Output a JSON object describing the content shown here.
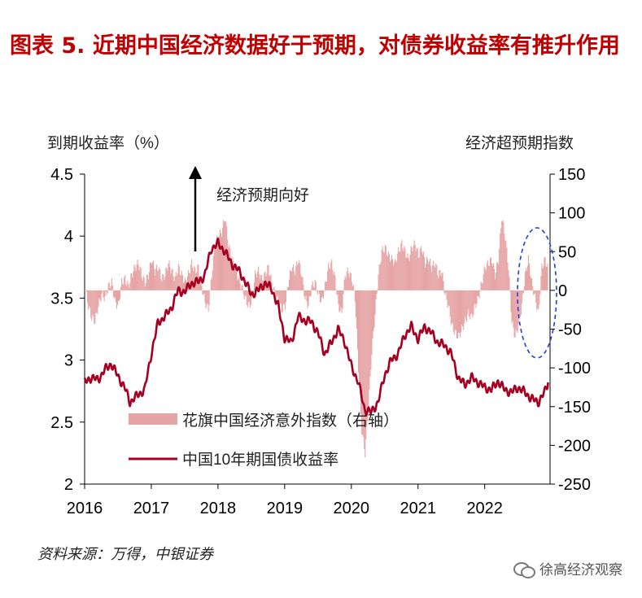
{
  "title": "图表 5.  近期中国经济数据好于预期，对债券收益率有推升作用",
  "source": "资料来源：万得，中银证券",
  "watermark": "徐高经济观察",
  "chart_data": {
    "type": "line+bar",
    "left_axis_label": "到期收益率（%）",
    "right_axis_label": "经济超预期指数",
    "left_ticks": [
      "4.5",
      "4",
      "3.5",
      "3",
      "2.5",
      "2"
    ],
    "right_ticks": [
      "150",
      "100",
      "50",
      "0",
      "-50",
      "-100",
      "-150",
      "-200",
      "-250"
    ],
    "x_ticks": [
      "2016",
      "2017",
      "2018",
      "2019",
      "2020",
      "2021",
      "2022"
    ],
    "ylim_left": [
      2,
      4.5
    ],
    "ylim_right": [
      -250,
      150
    ],
    "annotation": "经济预期向好",
    "legend": [
      "花旗中国经济意外指数（右轴）",
      "中国10年期国债收益率"
    ],
    "colors": {
      "bond": "#a50021",
      "citi": "#e6a5a5",
      "ellipse": "#1f3fd6",
      "title": "#c00000"
    },
    "series": [
      {
        "name": "中国10年期国债收益率",
        "axis": "left",
        "points": [
          [
            2016.0,
            2.82
          ],
          [
            2016.1,
            2.86
          ],
          [
            2016.2,
            2.84
          ],
          [
            2016.3,
            2.92
          ],
          [
            2016.4,
            2.97
          ],
          [
            2016.5,
            2.87
          ],
          [
            2016.6,
            2.78
          ],
          [
            2016.68,
            2.66
          ],
          [
            2016.8,
            2.72
          ],
          [
            2016.9,
            2.76
          ],
          [
            2017.0,
            3.05
          ],
          [
            2017.1,
            3.3
          ],
          [
            2017.2,
            3.35
          ],
          [
            2017.3,
            3.42
          ],
          [
            2017.4,
            3.56
          ],
          [
            2017.5,
            3.55
          ],
          [
            2017.6,
            3.62
          ],
          [
            2017.7,
            3.63
          ],
          [
            2017.8,
            3.68
          ],
          [
            2017.9,
            3.9
          ],
          [
            2018.0,
            3.94
          ],
          [
            2018.1,
            3.88
          ],
          [
            2018.2,
            3.78
          ],
          [
            2018.3,
            3.73
          ],
          [
            2018.4,
            3.64
          ],
          [
            2018.5,
            3.53
          ],
          [
            2018.6,
            3.56
          ],
          [
            2018.7,
            3.62
          ],
          [
            2018.8,
            3.58
          ],
          [
            2018.9,
            3.44
          ],
          [
            2019.0,
            3.18
          ],
          [
            2019.1,
            3.14
          ],
          [
            2019.2,
            3.35
          ],
          [
            2019.3,
            3.32
          ],
          [
            2019.4,
            3.31
          ],
          [
            2019.5,
            3.22
          ],
          [
            2019.6,
            3.05
          ],
          [
            2019.7,
            3.14
          ],
          [
            2019.8,
            3.25
          ],
          [
            2019.9,
            3.15
          ],
          [
            2020.0,
            2.95
          ],
          [
            2020.1,
            2.83
          ],
          [
            2020.2,
            2.6
          ],
          [
            2020.3,
            2.58
          ],
          [
            2020.4,
            2.66
          ],
          [
            2020.5,
            2.88
          ],
          [
            2020.6,
            3.0
          ],
          [
            2020.7,
            3.05
          ],
          [
            2020.8,
            3.2
          ],
          [
            2020.9,
            3.27
          ],
          [
            2021.0,
            3.17
          ],
          [
            2021.1,
            3.27
          ],
          [
            2021.2,
            3.22
          ],
          [
            2021.3,
            3.14
          ],
          [
            2021.4,
            3.12
          ],
          [
            2021.5,
            3.05
          ],
          [
            2021.6,
            2.86
          ],
          [
            2021.7,
            2.8
          ],
          [
            2021.8,
            2.86
          ],
          [
            2021.9,
            2.82
          ],
          [
            2022.0,
            2.78
          ],
          [
            2022.1,
            2.76
          ],
          [
            2022.2,
            2.83
          ],
          [
            2022.3,
            2.76
          ],
          [
            2022.4,
            2.74
          ],
          [
            2022.5,
            2.78
          ],
          [
            2022.6,
            2.74
          ],
          [
            2022.7,
            2.69
          ],
          [
            2022.8,
            2.66
          ],
          [
            2022.9,
            2.74
          ],
          [
            2022.95,
            2.82
          ]
        ]
      },
      {
        "name": "花旗中国经济意外指数（右轴）",
        "axis": "right",
        "points": [
          [
            2016.0,
            5
          ],
          [
            2016.05,
            -20
          ],
          [
            2016.1,
            -35
          ],
          [
            2016.15,
            -40
          ],
          [
            2016.2,
            -20
          ],
          [
            2016.25,
            -5
          ],
          [
            2016.3,
            -10
          ],
          [
            2016.35,
            5
          ],
          [
            2016.4,
            10
          ],
          [
            2016.45,
            -15
          ],
          [
            2016.5,
            -20
          ],
          [
            2016.55,
            10
          ],
          [
            2016.6,
            15
          ],
          [
            2016.65,
            5
          ],
          [
            2016.7,
            20
          ],
          [
            2016.75,
            30
          ],
          [
            2016.8,
            35
          ],
          [
            2016.85,
            20
          ],
          [
            2016.9,
            10
          ],
          [
            2016.95,
            20
          ],
          [
            2017.0,
            40
          ],
          [
            2017.05,
            25
          ],
          [
            2017.1,
            30
          ],
          [
            2017.15,
            15
          ],
          [
            2017.2,
            20
          ],
          [
            2017.25,
            35
          ],
          [
            2017.3,
            25
          ],
          [
            2017.35,
            15
          ],
          [
            2017.4,
            30
          ],
          [
            2017.45,
            20
          ],
          [
            2017.5,
            10
          ],
          [
            2017.55,
            20
          ],
          [
            2017.6,
            35
          ],
          [
            2017.65,
            25
          ],
          [
            2017.7,
            30
          ],
          [
            2017.75,
            5
          ],
          [
            2017.8,
            -15
          ],
          [
            2017.85,
            -25
          ],
          [
            2017.9,
            20
          ],
          [
            2017.95,
            60
          ],
          [
            2018.0,
            70
          ],
          [
            2018.05,
            75
          ],
          [
            2018.1,
            95
          ],
          [
            2018.15,
            60
          ],
          [
            2018.2,
            40
          ],
          [
            2018.25,
            30
          ],
          [
            2018.3,
            15
          ],
          [
            2018.35,
            5
          ],
          [
            2018.4,
            -10
          ],
          [
            2018.45,
            -20
          ],
          [
            2018.5,
            -15
          ],
          [
            2018.55,
            20
          ],
          [
            2018.6,
            25
          ],
          [
            2018.65,
            15
          ],
          [
            2018.7,
            20
          ],
          [
            2018.75,
            30
          ],
          [
            2018.8,
            10
          ],
          [
            2018.85,
            -5
          ],
          [
            2018.9,
            -15
          ],
          [
            2018.95,
            -25
          ],
          [
            2019.0,
            -20
          ],
          [
            2019.05,
            10
          ],
          [
            2019.1,
            30
          ],
          [
            2019.15,
            25
          ],
          [
            2019.2,
            40
          ],
          [
            2019.25,
            20
          ],
          [
            2019.3,
            -10
          ],
          [
            2019.35,
            -20
          ],
          [
            2019.4,
            5
          ],
          [
            2019.45,
            10
          ],
          [
            2019.5,
            -5
          ],
          [
            2019.55,
            -15
          ],
          [
            2019.6,
            5
          ],
          [
            2019.65,
            30
          ],
          [
            2019.7,
            35
          ],
          [
            2019.75,
            15
          ],
          [
            2019.8,
            -20
          ],
          [
            2019.85,
            -30
          ],
          [
            2019.9,
            20
          ],
          [
            2019.95,
            25
          ],
          [
            2020.0,
            15
          ],
          [
            2020.05,
            -10
          ],
          [
            2020.1,
            -100
          ],
          [
            2020.15,
            -180
          ],
          [
            2020.2,
            -210
          ],
          [
            2020.25,
            -150
          ],
          [
            2020.3,
            -80
          ],
          [
            2020.35,
            -30
          ],
          [
            2020.4,
            20
          ],
          [
            2020.45,
            50
          ],
          [
            2020.5,
            55
          ],
          [
            2020.55,
            45
          ],
          [
            2020.6,
            40
          ],
          [
            2020.65,
            35
          ],
          [
            2020.7,
            50
          ],
          [
            2020.75,
            60
          ],
          [
            2020.8,
            50
          ],
          [
            2020.85,
            40
          ],
          [
            2020.9,
            55
          ],
          [
            2020.95,
            60
          ],
          [
            2021.0,
            45
          ],
          [
            2021.05,
            55
          ],
          [
            2021.1,
            35
          ],
          [
            2021.15,
            40
          ],
          [
            2021.2,
            30
          ],
          [
            2021.25,
            35
          ],
          [
            2021.3,
            20
          ],
          [
            2021.35,
            25
          ],
          [
            2021.4,
            -5
          ],
          [
            2021.45,
            -20
          ],
          [
            2021.5,
            -45
          ],
          [
            2021.55,
            -55
          ],
          [
            2021.6,
            -60
          ],
          [
            2021.65,
            -50
          ],
          [
            2021.7,
            -40
          ],
          [
            2021.75,
            -30
          ],
          [
            2021.8,
            -35
          ],
          [
            2021.85,
            -20
          ],
          [
            2021.9,
            -10
          ],
          [
            2021.95,
            10
          ],
          [
            2022.0,
            30
          ],
          [
            2022.05,
            35
          ],
          [
            2022.1,
            40
          ],
          [
            2022.15,
            20
          ],
          [
            2022.2,
            40
          ],
          [
            2022.25,
            95
          ],
          [
            2022.3,
            70
          ],
          [
            2022.35,
            30
          ],
          [
            2022.4,
            -40
          ],
          [
            2022.45,
            -60
          ],
          [
            2022.5,
            -45
          ],
          [
            2022.55,
            -20
          ],
          [
            2022.6,
            20
          ],
          [
            2022.65,
            40
          ],
          [
            2022.7,
            10
          ],
          [
            2022.75,
            -10
          ],
          [
            2022.8,
            -30
          ],
          [
            2022.85,
            30
          ],
          [
            2022.9,
            40
          ],
          [
            2022.95,
            25
          ]
        ]
      }
    ]
  }
}
